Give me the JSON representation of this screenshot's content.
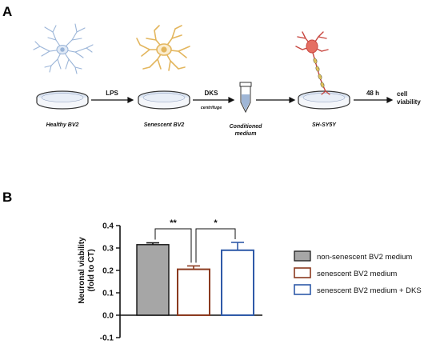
{
  "panel_a": {
    "letter": "A",
    "steps": [
      {
        "id": "healthy",
        "label": "Healthy BV2"
      },
      {
        "id": "senescent",
        "label": "Senescent BV2"
      },
      {
        "id": "conditioned",
        "label_line1": "Conditioned",
        "label_line2": "medium"
      },
      {
        "id": "shsy5y",
        "label": "SH-SY5Y"
      }
    ],
    "arrows": {
      "lps": "LPS",
      "dks": "DKS",
      "dks_sub": "centrifuge",
      "time": "48 h",
      "result_line1": "cell",
      "result_line2": "viability"
    },
    "colors": {
      "healthy_cell": "#9bb5d8",
      "senescent_cell": "#e3b65e",
      "neuron": "#c8463f",
      "axon": "#e0c25a"
    },
    "icons": [
      "microglia-icon",
      "senescent-microglia-icon",
      "tube-icon",
      "neuron-icon",
      "petri-dish-icon"
    ]
  },
  "panel_b": {
    "letter": "B",
    "significance": {
      "left": "**",
      "right": "*"
    },
    "legend": [
      {
        "label": "non-senescent BV2 medium",
        "color": "#a6a6a6",
        "style": "filled"
      },
      {
        "label": "senescent BV2 medium",
        "color": "#8b3a1f",
        "style": "outline"
      },
      {
        "label": "senescent BV2 medium + DKS",
        "color": "#2f5aa8",
        "style": "outline"
      }
    ]
  },
  "chart_data": {
    "type": "bar",
    "categories": [
      "non-senescent BV2 medium",
      "senescent BV2 medium",
      "senescent BV2 medium + DKS"
    ],
    "values": [
      0.315,
      0.205,
      0.29
    ],
    "errors": [
      0.008,
      0.015,
      0.035
    ],
    "ylabel": "Neuronal viability (fold to CT)",
    "ylabel_line1": "Neuronal viability",
    "ylabel_line2": "(fold to CT)",
    "xlabel": "",
    "ylim": [
      -0.1,
      0.4
    ],
    "yticks": [
      0.4,
      0.3,
      0.2,
      0.1,
      0.0,
      -0.1
    ],
    "ytick_labels": [
      "0.4",
      "0.3",
      "0.2",
      "0.1",
      "0.0",
      "-0.1"
    ],
    "grid": false,
    "legend_position": "right"
  }
}
